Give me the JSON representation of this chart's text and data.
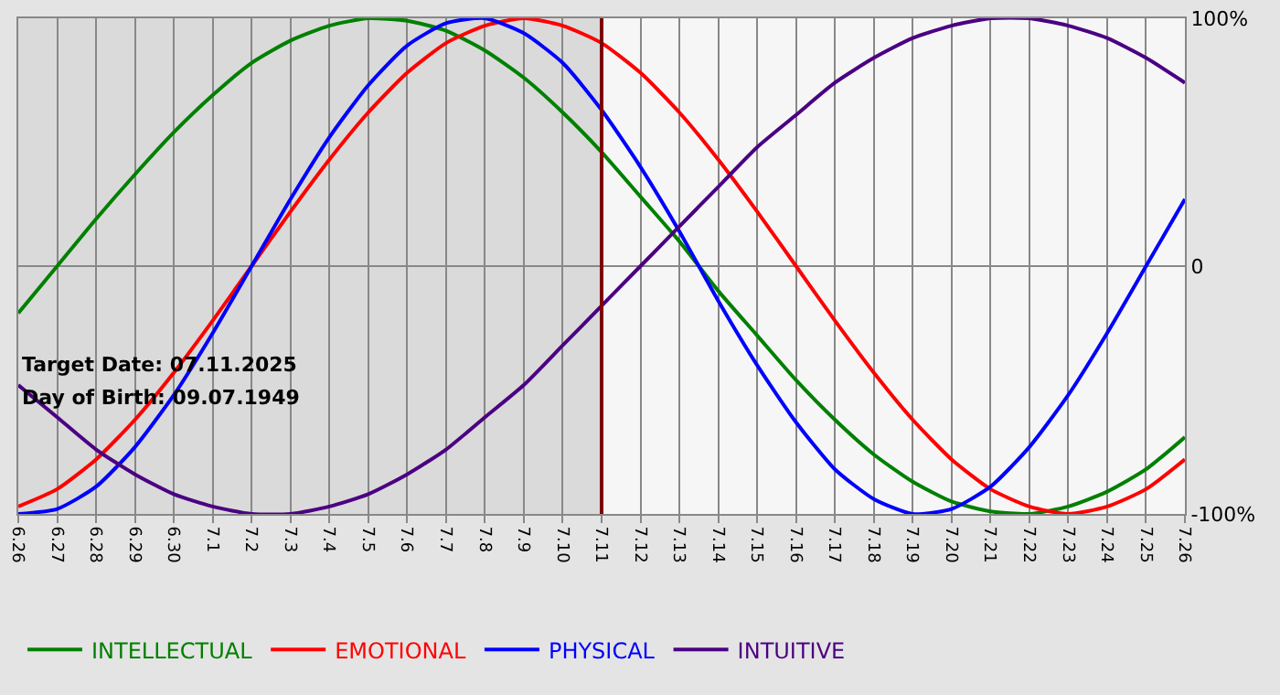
{
  "chart_data": {
    "type": "line",
    "categories": [
      "6.26",
      "6.27",
      "6.28",
      "6.29",
      "6.30",
      "7.1",
      "7.2",
      "7.3",
      "7.4",
      "7.5",
      "7.6",
      "7.7",
      "7.8",
      "7.9",
      "7.10",
      "7.11",
      "7.12",
      "7.13",
      "7.14",
      "7.15",
      "7.16",
      "7.17",
      "7.18",
      "7.19",
      "7.20",
      "7.21",
      "7.22",
      "7.23",
      "7.24",
      "7.25",
      "7.26"
    ],
    "series": [
      {
        "name": "INTELLECTUAL",
        "color": "#008000",
        "values": [
          -19,
          0,
          19,
          37,
          54,
          69,
          82,
          91,
          97,
          100,
          99,
          95,
          87,
          76,
          62,
          46,
          28,
          10,
          -10,
          -28,
          -46,
          -62,
          -76,
          -87,
          -95,
          -99,
          -100,
          -97,
          -91,
          -82,
          -69
        ]
      },
      {
        "name": "EMOTIONAL",
        "color": "#ff0000",
        "values": [
          -97,
          -90,
          -78,
          -62,
          -43,
          -22,
          0,
          22,
          43,
          62,
          78,
          90,
          97,
          100,
          97,
          90,
          78,
          62,
          43,
          22,
          0,
          -22,
          -43,
          -62,
          -78,
          -90,
          -97,
          -100,
          -97,
          -90,
          -78
        ]
      },
      {
        "name": "PHYSICAL",
        "color": "#0000ff",
        "values": [
          -100,
          -98,
          -89,
          -73,
          -52,
          -27,
          0,
          27,
          52,
          73,
          89,
          98,
          100,
          94,
          82,
          63,
          40,
          14,
          -14,
          -40,
          -63,
          -82,
          -94,
          -100,
          -98,
          -89,
          -73,
          -52,
          -27,
          0,
          27
        ]
      },
      {
        "name": "INTUITIVE",
        "color": "#4b0082",
        "values": [
          -48,
          -61,
          -74,
          -84,
          -92,
          -97,
          -100,
          -100,
          -97,
          -92,
          -84,
          -74,
          -61,
          -48,
          -32,
          -16,
          0,
          16,
          32,
          48,
          61,
          74,
          84,
          92,
          97,
          100,
          100,
          97,
          92,
          84,
          74
        ]
      }
    ],
    "ylim": [
      -100,
      100
    ],
    "yticks": [
      {
        "value": 100,
        "label": "100%"
      },
      0,
      {
        "value": -100,
        "label": "-100%"
      }
    ],
    "grid": true,
    "legend": "bottom left",
    "marker": "none",
    "line_style": "solid",
    "ref_lines": [
      {
        "axis": "x",
        "value": "7.11",
        "color": "#800000"
      }
    ],
    "bands": [
      {
        "axis": "x",
        "from": "6.26",
        "to": "7.11",
        "color": "#dadada"
      }
    ],
    "annotations": [
      "Target Date: 07.11.2025",
      "Day of Birth: 09.07.1949"
    ]
  }
}
